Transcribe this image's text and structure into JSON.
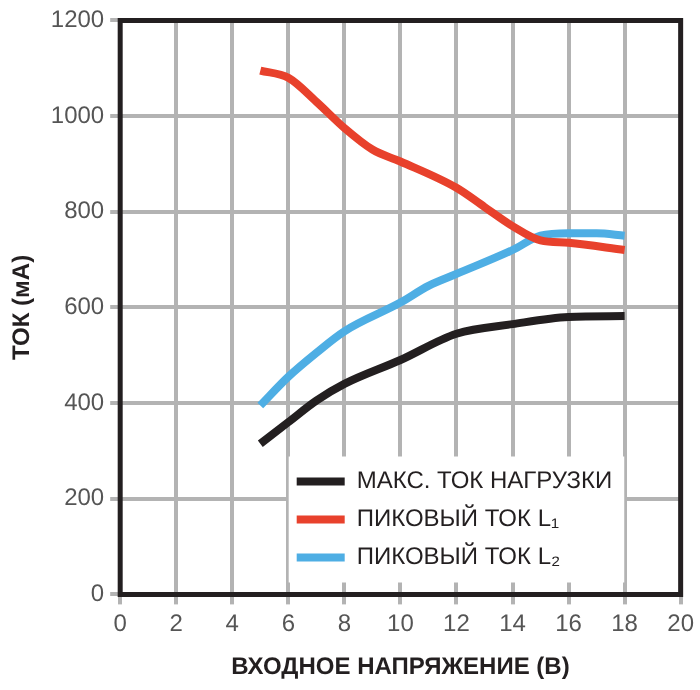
{
  "chart_data": {
    "type": "line",
    "xlabel": "ВХОДНОЕ НАПРЯЖЕНИЕ (В)",
    "ylabel": "ТОК (мА)",
    "xlim": [
      0,
      20
    ],
    "xticks": [
      0,
      2,
      4,
      6,
      8,
      10,
      12,
      14,
      16,
      18,
      20
    ],
    "ylim": [
      0,
      1200
    ],
    "yticks": [
      0,
      200,
      400,
      600,
      800,
      1000,
      1200
    ],
    "grid": true,
    "legend": "bottom",
    "marker": "none",
    "line_style": "solid",
    "series": [
      {
        "name": "МАКС. ТОК НАГРУЗКИ",
        "color": "#231f20",
        "x": [
          5,
          6,
          7,
          8,
          10,
          12,
          14,
          16,
          18
        ],
        "values": [
          315,
          360,
          405,
          440,
          490,
          545,
          565,
          580,
          582
        ]
      },
      {
        "name": "ПИКОВЫЙ ТОК L₁",
        "color": "#e8412c",
        "x": [
          5,
          6,
          7,
          8,
          9,
          10,
          12,
          13,
          14,
          15,
          16,
          18
        ],
        "values": [
          1095,
          1080,
          1030,
          975,
          930,
          905,
          850,
          810,
          770,
          740,
          735,
          720
        ]
      },
      {
        "name": "ПИКОВЫЙ ТОК L₂",
        "color": "#4eaee4",
        "x": [
          5,
          6,
          7,
          8,
          10,
          11,
          12,
          14,
          15,
          16,
          17,
          18
        ],
        "values": [
          395,
          455,
          505,
          550,
          610,
          645,
          670,
          720,
          750,
          755,
          755,
          750
        ]
      }
    ]
  }
}
